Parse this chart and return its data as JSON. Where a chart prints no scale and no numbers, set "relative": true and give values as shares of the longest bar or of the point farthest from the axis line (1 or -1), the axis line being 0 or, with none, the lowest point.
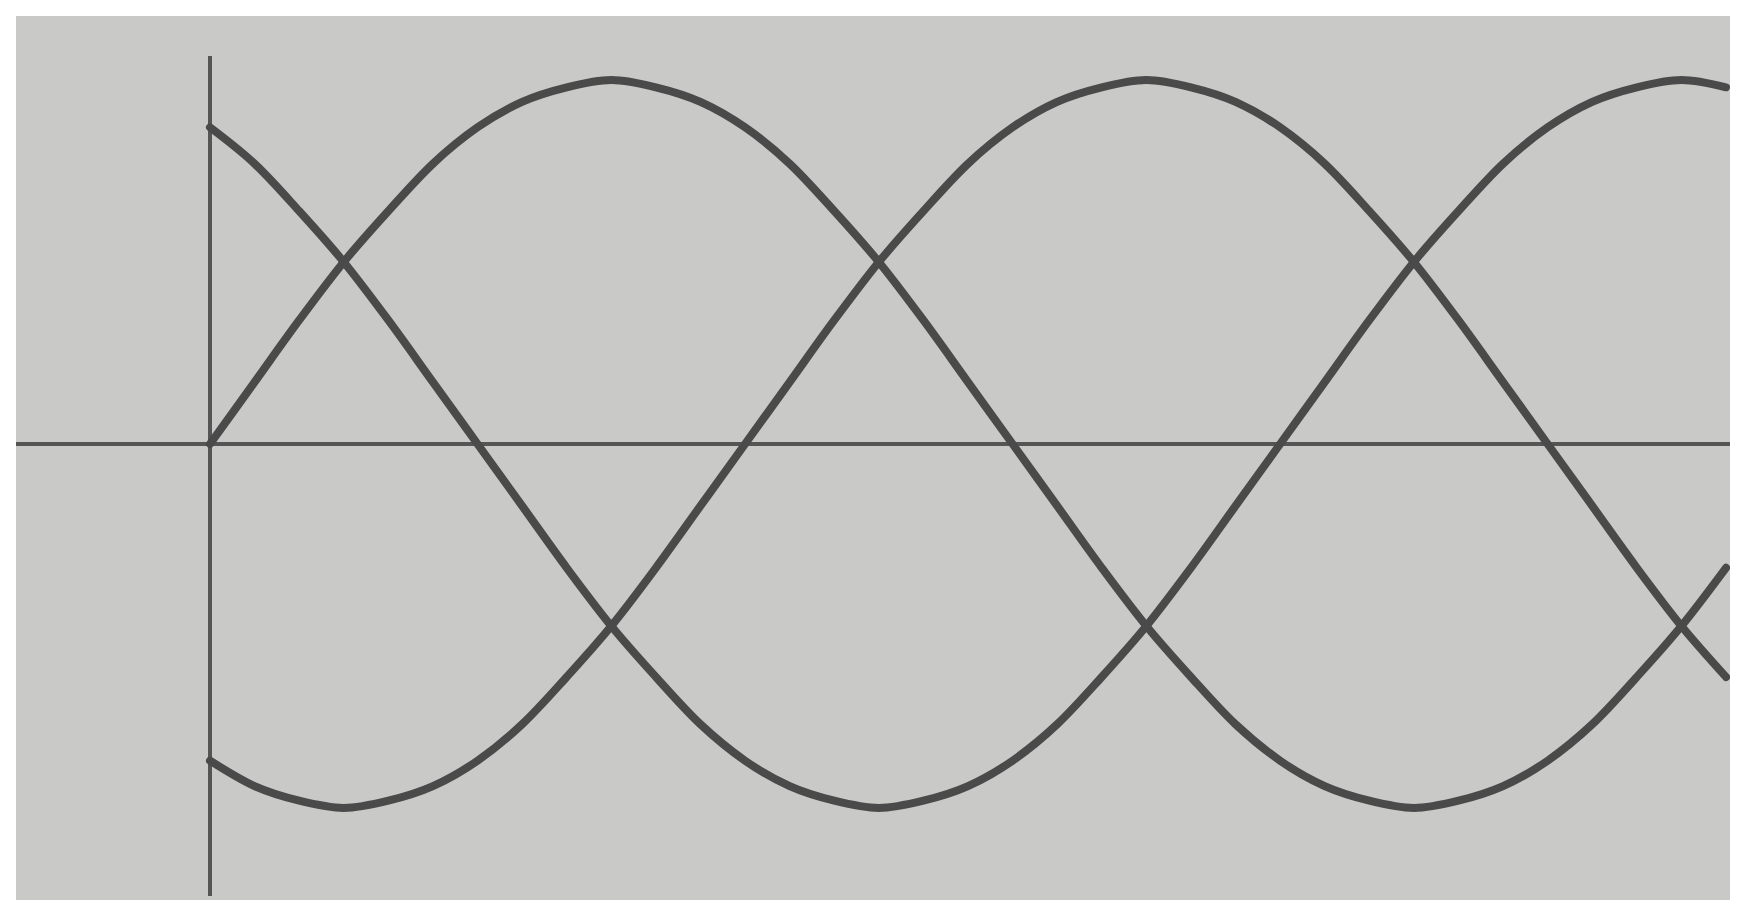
{
  "chart_data": {
    "type": "line",
    "relative": true,
    "line_style": "solid",
    "categories": [
      null,
      null,
      null,
      null,
      null,
      null,
      null,
      null,
      null,
      null,
      null,
      null,
      null,
      null,
      null,
      null,
      null,
      null,
      null,
      null,
      null,
      null,
      null,
      null,
      null,
      null,
      null,
      null,
      null,
      null,
      null,
      null,
      null,
      null,
      null
    ],
    "series": [
      {
        "color": "#4a4a4a",
        "values": [
          0,
          0.17,
          0.34,
          0.5,
          0.64,
          0.77,
          0.87,
          0.94,
          0.98,
          1,
          0.98,
          0.94,
          0.87,
          0.77,
          0.64,
          0.5,
          0.34,
          0.17,
          0,
          -0.17,
          -0.34,
          -0.5,
          -0.64,
          -0.77,
          -0.87,
          -0.94,
          -0.98,
          -1,
          -0.98,
          -0.94,
          -0.87,
          -0.77,
          -0.64,
          -0.5,
          -0.34
        ]
      },
      {
        "color": "#4a4a4a",
        "values": [
          0.87,
          0.77,
          0.64,
          0.5,
          0.34,
          0.17,
          0,
          -0.17,
          -0.34,
          -0.5,
          -0.64,
          -0.77,
          -0.87,
          -0.94,
          -0.98,
          -1,
          -0.98,
          -0.94,
          -0.87,
          -0.77,
          -0.64,
          -0.5,
          -0.34,
          -0.17,
          0,
          0.17,
          0.34,
          0.5,
          0.64,
          0.77,
          0.87,
          0.94,
          0.98,
          1,
          0.98
        ]
      },
      {
        "color": "#4a4a4a",
        "values": [
          -0.87,
          -0.94,
          -0.98,
          -1,
          -0.98,
          -0.94,
          -0.87,
          -0.77,
          -0.64,
          -0.5,
          -0.34,
          -0.17,
          0,
          0.17,
          0.34,
          0.5,
          0.64,
          0.77,
          0.87,
          0.94,
          0.98,
          1,
          0.98,
          0.94,
          0.87,
          0.77,
          0.64,
          0.5,
          0.34,
          0.17,
          0,
          -0.17,
          -0.34,
          -0.5,
          -0.64
        ]
      }
    ]
  }
}
